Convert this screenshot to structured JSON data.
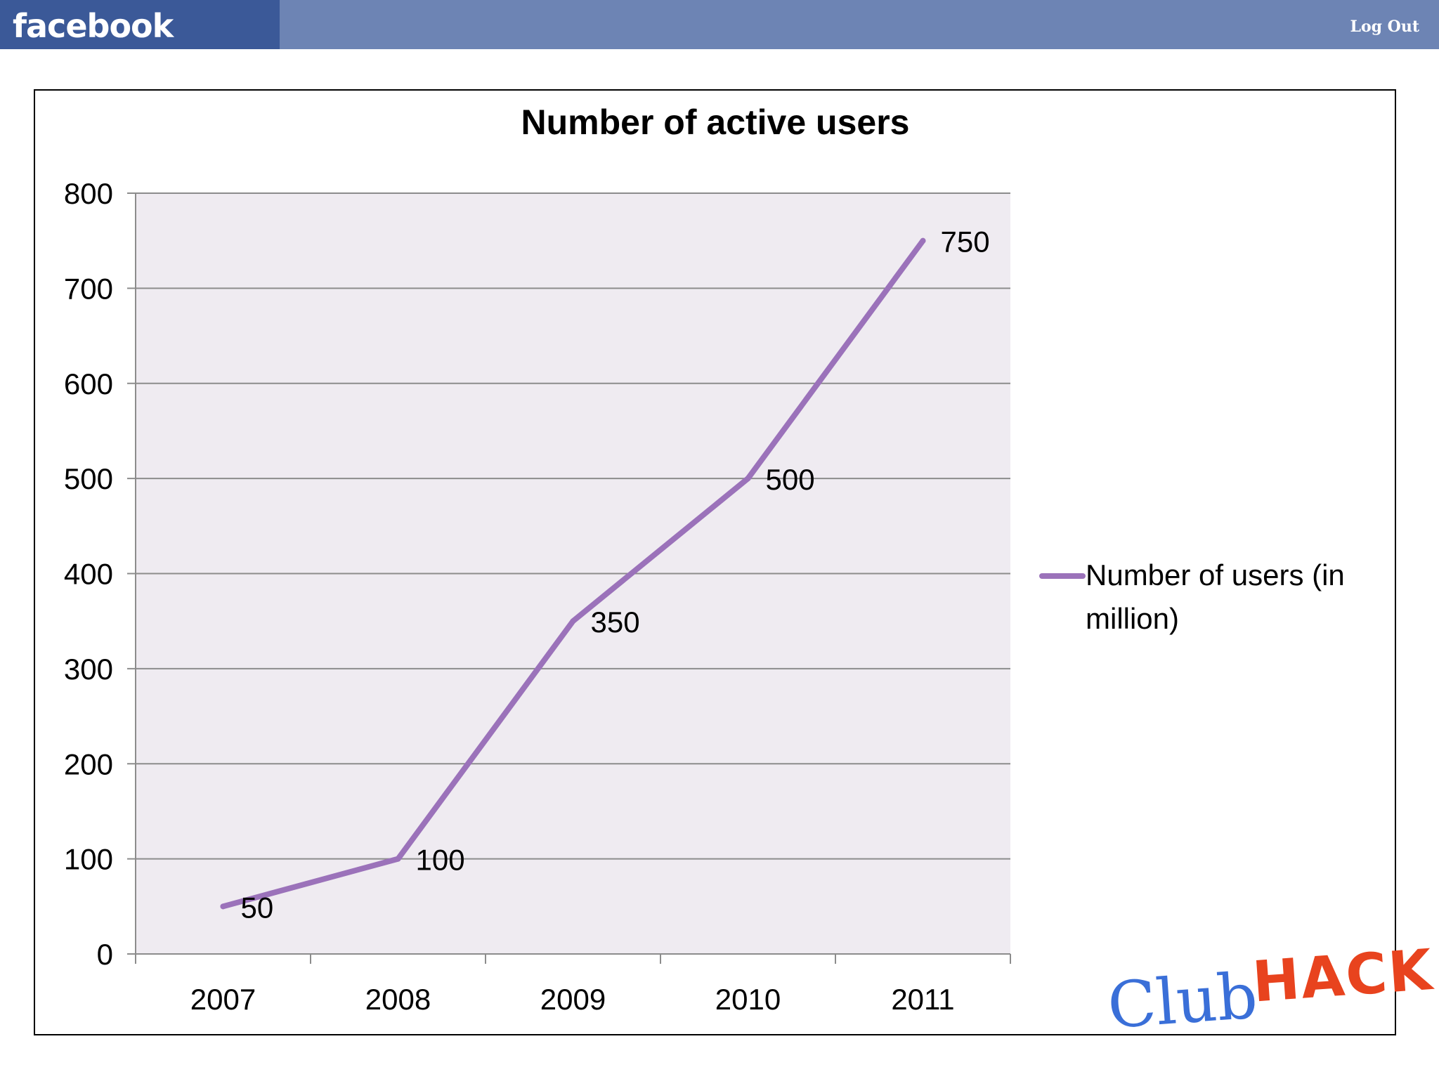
{
  "header": {
    "logo_text": "facebook",
    "logout_label": "Log Out"
  },
  "brand": {
    "club": "Club",
    "hack": "HACK"
  },
  "colors": {
    "topbar": "#6d84b4",
    "logo_bg": "#3b5998",
    "series_line": "#9b72ba",
    "plot_bg": "#efebf1"
  },
  "chart_data": {
    "type": "line",
    "title": "Number of active users",
    "xlabel": "",
    "ylabel": "",
    "categories": [
      "2007",
      "2008",
      "2009",
      "2010",
      "2011"
    ],
    "series": [
      {
        "name": "Number of users (in million)",
        "values": [
          50,
          100,
          350,
          500,
          750
        ]
      }
    ],
    "ylim": [
      0,
      800
    ],
    "yticks": [
      0,
      100,
      200,
      300,
      400,
      500,
      600,
      700,
      800
    ],
    "grid": true,
    "legend": "right",
    "data_labels": true
  }
}
